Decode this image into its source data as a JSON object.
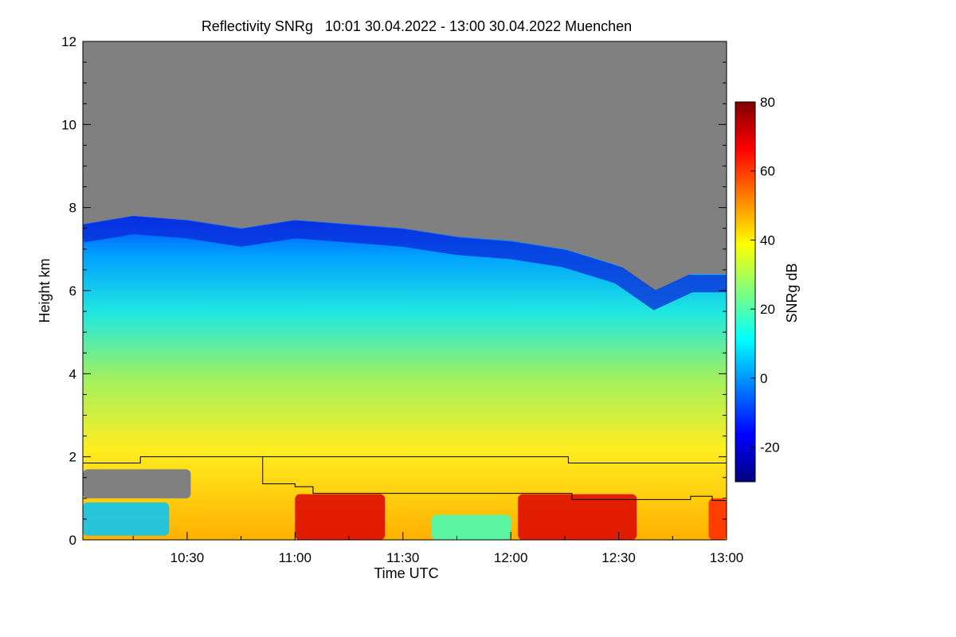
{
  "chart_data": {
    "type": "heatmap",
    "title": "Reflectivity SNRg   10:01 30.04.2022 - 13:00 30.04.2022 Muenchen",
    "xlabel": "Time UTC",
    "ylabel": "Height km",
    "x_range_utc": [
      "10:01",
      "13:00"
    ],
    "x_ticks": [
      "10:30",
      "11:00",
      "11:30",
      "12:00",
      "12:30",
      "13:00"
    ],
    "y_range_km": [
      0,
      12
    ],
    "y_ticks": [
      0,
      2,
      4,
      6,
      8,
      10,
      12
    ],
    "background_color": "#808080",
    "grid": false,
    "colorbar": {
      "label": "SNRg dB",
      "range_db": [
        -30,
        80
      ],
      "ticks": [
        -20,
        0,
        20,
        40,
        60,
        80
      ],
      "colors": [
        "#00007f",
        "#0000ff",
        "#007fff",
        "#00ffff",
        "#7fff7f",
        "#ffff00",
        "#ff7f00",
        "#ff0000",
        "#7f0000"
      ],
      "placement": "right"
    },
    "echo_top_km": [
      {
        "t": "10:01",
        "km": 7.6
      },
      {
        "t": "10:15",
        "km": 7.8
      },
      {
        "t": "10:30",
        "km": 7.7
      },
      {
        "t": "10:45",
        "km": 7.5
      },
      {
        "t": "11:00",
        "km": 7.7
      },
      {
        "t": "11:15",
        "km": 7.6
      },
      {
        "t": "11:30",
        "km": 7.5
      },
      {
        "t": "11:45",
        "km": 7.3
      },
      {
        "t": "12:00",
        "km": 7.2
      },
      {
        "t": "12:15",
        "km": 7.0
      },
      {
        "t": "12:30",
        "km": 6.6
      },
      {
        "t": "12:40",
        "km": 6.0
      },
      {
        "t": "12:50",
        "km": 6.4
      },
      {
        "t": "13:00",
        "km": 6.4
      }
    ],
    "upper_line_km": [
      {
        "t": "10:01",
        "km": 1.85
      },
      {
        "t": "10:17",
        "km": 1.85
      },
      {
        "t": "10:17",
        "km": 2.0
      },
      {
        "t": "12:16",
        "km": 2.0
      },
      {
        "t": "12:16",
        "km": 1.85
      },
      {
        "t": "13:00",
        "km": 1.85
      }
    ],
    "lower_line_km": [
      {
        "t": "10:51",
        "km": 2.0
      },
      {
        "t": "10:51",
        "km": 1.35
      },
      {
        "t": "11:00",
        "km": 1.35
      },
      {
        "t": "11:00",
        "km": 1.28
      },
      {
        "t": "11:05",
        "km": 1.28
      },
      {
        "t": "11:05",
        "km": 1.12
      },
      {
        "t": "12:17",
        "km": 1.12
      },
      {
        "t": "12:17",
        "km": 0.97
      },
      {
        "t": "12:50",
        "km": 0.97
      },
      {
        "t": "12:50",
        "km": 1.05
      },
      {
        "t": "12:56",
        "km": 1.05
      },
      {
        "t": "12:56",
        "km": 0.95
      },
      {
        "t": "13:00",
        "km": 0.95
      }
    ],
    "regions": [
      {
        "t0": "10:01",
        "t1": "10:31",
        "km0": 1.0,
        "km1": 1.7,
        "db": null
      },
      {
        "t0": "10:01",
        "t1": "10:25",
        "km0": 0.1,
        "km1": 0.9,
        "db": 5
      },
      {
        "t0": "11:00",
        "t1": "11:25",
        "km0": 0.0,
        "km1": 1.1,
        "db": 70
      },
      {
        "t0": "12:02",
        "t1": "12:35",
        "km0": 0.0,
        "km1": 1.1,
        "db": 70
      },
      {
        "t0": "12:55",
        "t1": "13:00",
        "km0": 0.0,
        "km1": 1.0,
        "db": 62
      },
      {
        "t0": "11:38",
        "t1": "12:00",
        "km0": 0.0,
        "km1": 0.6,
        "db": 18
      }
    ]
  }
}
